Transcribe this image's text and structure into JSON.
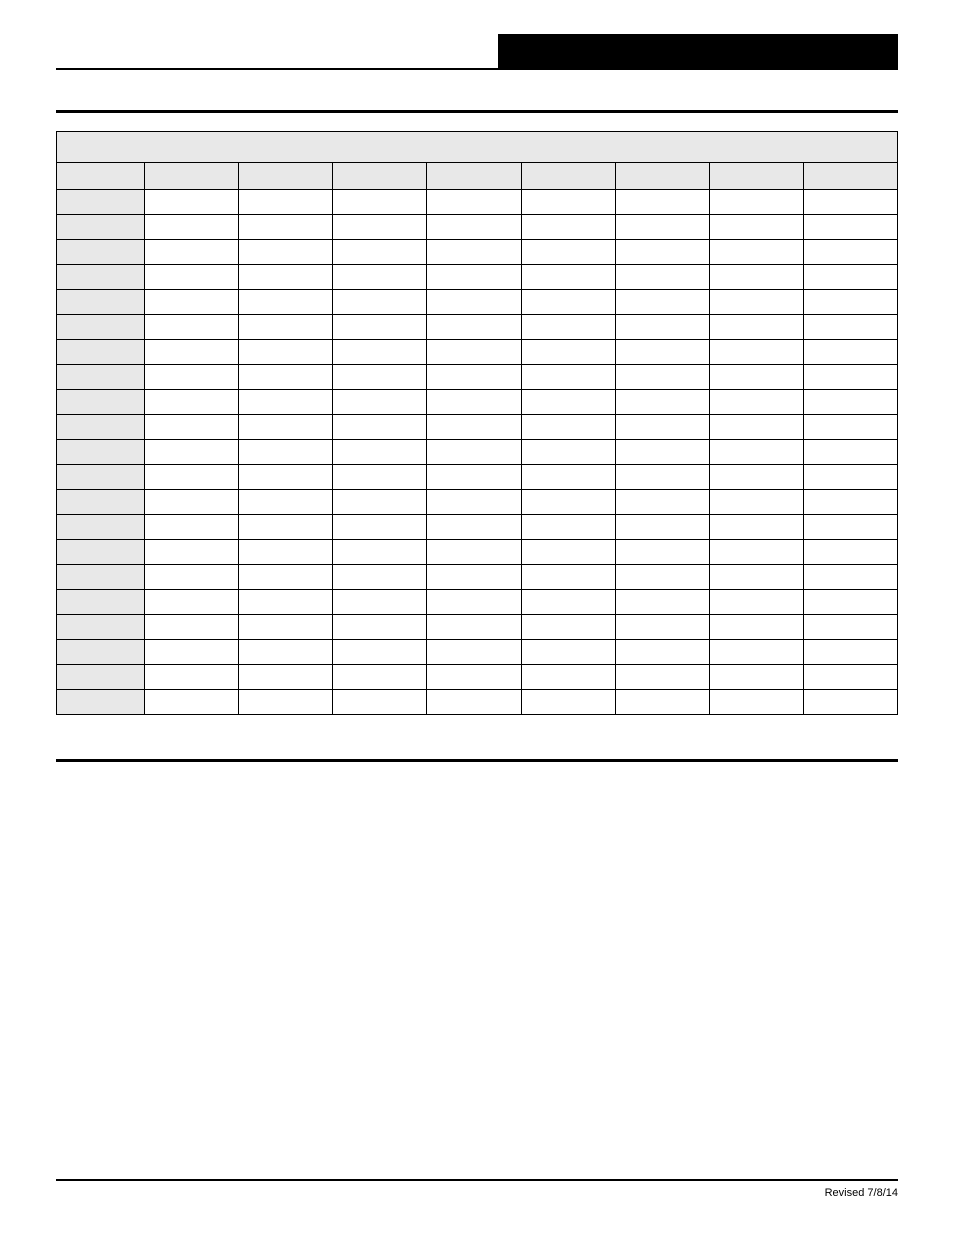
{
  "header": {
    "left_text": "",
    "right_text": ""
  },
  "table": {
    "title": "",
    "columns": [
      "",
      "",
      "",
      "",
      "",
      "",
      "",
      "",
      ""
    ],
    "rows": [
      [
        "",
        "",
        "",
        "",
        "",
        "",
        "",
        "",
        ""
      ],
      [
        "",
        "",
        "",
        "",
        "",
        "",
        "",
        "",
        ""
      ],
      [
        "",
        "",
        "",
        "",
        "",
        "",
        "",
        "",
        ""
      ],
      [
        "",
        "",
        "",
        "",
        "",
        "",
        "",
        "",
        ""
      ],
      [
        "",
        "",
        "",
        "",
        "",
        "",
        "",
        "",
        ""
      ],
      [
        "",
        "",
        "",
        "",
        "",
        "",
        "",
        "",
        ""
      ],
      [
        "",
        "",
        "",
        "",
        "",
        "",
        "",
        "",
        ""
      ],
      [
        "",
        "",
        "",
        "",
        "",
        "",
        "",
        "",
        ""
      ],
      [
        "",
        "",
        "",
        "",
        "",
        "",
        "",
        "",
        ""
      ],
      [
        "",
        "",
        "",
        "",
        "",
        "",
        "",
        "",
        ""
      ],
      [
        "",
        "",
        "",
        "",
        "",
        "",
        "",
        "",
        ""
      ],
      [
        "",
        "",
        "",
        "",
        "",
        "",
        "",
        "",
        ""
      ],
      [
        "",
        "",
        "",
        "",
        "",
        "",
        "",
        "",
        ""
      ],
      [
        "",
        "",
        "",
        "",
        "",
        "",
        "",
        "",
        ""
      ],
      [
        "",
        "",
        "",
        "",
        "",
        "",
        "",
        "",
        ""
      ],
      [
        "",
        "",
        "",
        "",
        "",
        "",
        "",
        "",
        ""
      ],
      [
        "",
        "",
        "",
        "",
        "",
        "",
        "",
        "",
        ""
      ],
      [
        "",
        "",
        "",
        "",
        "",
        "",
        "",
        "",
        ""
      ],
      [
        "",
        "",
        "",
        "",
        "",
        "",
        "",
        "",
        ""
      ],
      [
        "",
        "",
        "",
        "",
        "",
        "",
        "",
        "",
        ""
      ],
      [
        "",
        "",
        "",
        "",
        "",
        "",
        "",
        "",
        ""
      ]
    ],
    "header_bg": "#e8e8e8",
    "rowhead_bg": "#e8e8e8",
    "border_color": "#000000",
    "cell_bg": "#ffffff"
  },
  "footer": {
    "revised_label": "Revised 7/8/14"
  }
}
